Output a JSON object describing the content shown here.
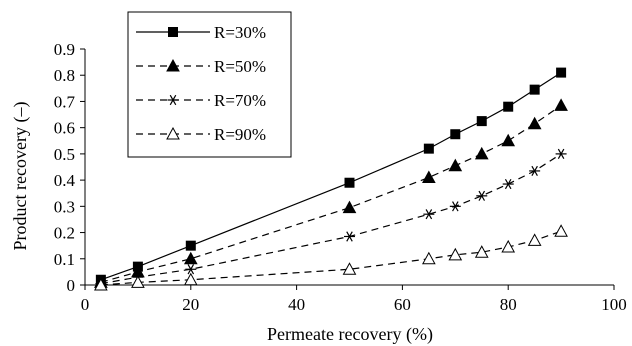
{
  "chart_data": {
    "type": "line",
    "xlabel": "Permeate recovery (%)",
    "ylabel": "Product recovery (–)",
    "xlim": [
      0,
      100
    ],
    "ylim": [
      0,
      0.9
    ],
    "xticks": [
      "0",
      "20",
      "40",
      "60",
      "80",
      "100"
    ],
    "yticks": [
      "0",
      "0.1",
      "0.2",
      "0.3",
      "0.4",
      "0.5",
      "0.6",
      "0.7",
      "0.8",
      "0.9"
    ],
    "grid": false,
    "legend_position": "top-left",
    "series": [
      {
        "name": "R=30%",
        "marker": "filled-square",
        "line": "solid",
        "x": [
          3,
          10,
          20,
          50,
          65,
          70,
          75,
          80,
          85,
          90
        ],
        "y": [
          0.02,
          0.07,
          0.15,
          0.39,
          0.52,
          0.575,
          0.625,
          0.68,
          0.745,
          0.81
        ]
      },
      {
        "name": "R=50%",
        "marker": "filled-triangle",
        "line": "dashed",
        "x": [
          3,
          10,
          20,
          50,
          65,
          70,
          75,
          80,
          85,
          90
        ],
        "y": [
          0.01,
          0.05,
          0.1,
          0.295,
          0.41,
          0.455,
          0.5,
          0.55,
          0.615,
          0.685
        ]
      },
      {
        "name": "R=70%",
        "marker": "asterisk",
        "line": "dashed",
        "x": [
          3,
          10,
          20,
          50,
          65,
          70,
          75,
          80,
          85,
          90
        ],
        "y": [
          0.005,
          0.03,
          0.06,
          0.185,
          0.27,
          0.3,
          0.34,
          0.385,
          0.435,
          0.5
        ]
      },
      {
        "name": "R=90%",
        "marker": "open-triangle",
        "line": "dashed",
        "x": [
          3,
          10,
          20,
          50,
          65,
          70,
          75,
          80,
          85,
          90
        ],
        "y": [
          0.0,
          0.01,
          0.02,
          0.06,
          0.1,
          0.115,
          0.125,
          0.145,
          0.17,
          0.205
        ]
      }
    ]
  }
}
